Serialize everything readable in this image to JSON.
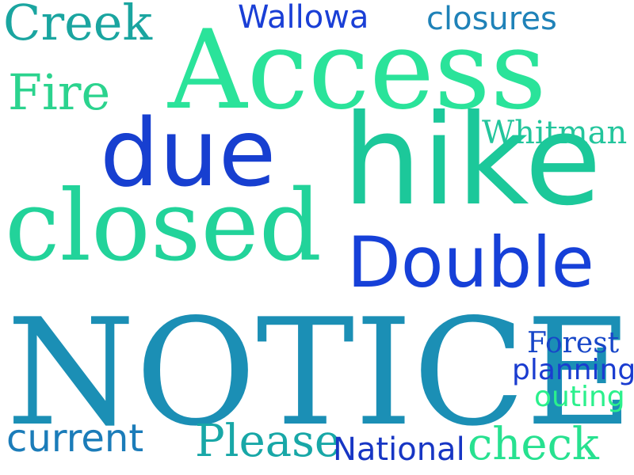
{
  "colors": {
    "background": "#ffffff",
    "teal": "#1aa5a0",
    "green": "#2ae39a",
    "royal_blue": "#1a3fd6",
    "steel_blue": "#1f82b8",
    "light_green": "#2bf08c"
  },
  "words": [
    {
      "id": "creek",
      "text": "Creek",
      "color": "#1aa5a0"
    },
    {
      "id": "wallowa",
      "text": "Wallowa",
      "color": "#1a3fd6"
    },
    {
      "id": "closures",
      "text": "closures",
      "color": "#1f82b8"
    },
    {
      "id": "access",
      "text": "Access",
      "color": "#2ae39a"
    },
    {
      "id": "fire",
      "text": "Fire",
      "color": "#2bd38e"
    },
    {
      "id": "whitman",
      "text": "Whitman",
      "color": "#23c59c"
    },
    {
      "id": "due",
      "text": "due",
      "color": "#173fd0"
    },
    {
      "id": "hike",
      "text": "hike",
      "color": "#1cc89a"
    },
    {
      "id": "closed",
      "text": "closed",
      "color": "#22d39a"
    },
    {
      "id": "double",
      "text": "Double",
      "color": "#1640d8"
    },
    {
      "id": "notice",
      "text": "NOTICE",
      "color": "#1b8fb5"
    },
    {
      "id": "forest",
      "text": "Forest",
      "color": "#1746c8"
    },
    {
      "id": "planning",
      "text": "planning",
      "color": "#1a3cd0"
    },
    {
      "id": "outing",
      "text": "outing",
      "color": "#2bf08c"
    },
    {
      "id": "current",
      "text": "current",
      "color": "#1b7cb9"
    },
    {
      "id": "please",
      "text": "Please",
      "color": "#18a7a7"
    },
    {
      "id": "national",
      "text": "National",
      "color": "#1736c4"
    },
    {
      "id": "check",
      "text": "check",
      "color": "#27e190"
    }
  ]
}
